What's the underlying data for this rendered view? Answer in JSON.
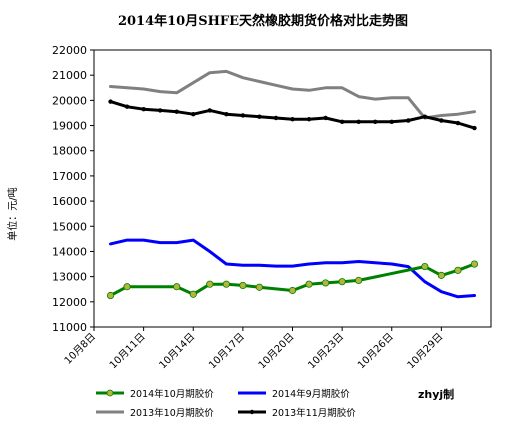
{
  "chart_data": {
    "type": "line",
    "title": "2014年10月SHFE天然橡胶期货价格对比走势图",
    "ylabel": "单位：元/吨",
    "xlabel": "",
    "ylim": [
      11000,
      22000
    ],
    "y_ticks": [
      11000,
      12000,
      13000,
      14000,
      15000,
      16000,
      17000,
      18000,
      19000,
      20000,
      21000,
      22000
    ],
    "x_tick_labels": [
      "10月8日",
      "10月11日",
      "10月14日",
      "10月17日",
      "10月20日",
      "10月23日",
      "10月26日",
      "10月29日"
    ],
    "x_ticks": [
      8,
      11,
      14,
      17,
      20,
      23,
      26,
      29
    ],
    "xlim": [
      8,
      32
    ],
    "grid": false,
    "credit": "zhyj制",
    "series": [
      {
        "name": "2014年10月期胶价",
        "color": "#008000",
        "marker": true,
        "marker_color": "#b5b53c",
        "x": [
          9,
          10,
          13,
          14,
          15,
          16,
          17,
          18,
          20,
          21,
          22,
          23,
          24,
          28,
          29,
          30,
          31
        ],
        "y": [
          12250,
          12600,
          12600,
          12300,
          12700,
          12700,
          12650,
          12580,
          12450,
          12700,
          12750,
          12800,
          12850,
          13400,
          13050,
          13250,
          13500
        ]
      },
      {
        "name": "2014年9月期胶价",
        "color": "#0000ff",
        "marker": false,
        "x": [
          9,
          10,
          11,
          12,
          13,
          14,
          15,
          16,
          17,
          18,
          19,
          20,
          21,
          22,
          23,
          24,
          25,
          26,
          27,
          28,
          29,
          30,
          31
        ],
        "y": [
          14300,
          14450,
          14450,
          14350,
          14350,
          14450,
          14000,
          13500,
          13450,
          13450,
          13420,
          13420,
          13500,
          13550,
          13550,
          13600,
          13550,
          13500,
          13400,
          12800,
          12400,
          12200,
          12250
        ]
      },
      {
        "name": "2013年10月期胶价",
        "color": "#808080",
        "marker": false,
        "x": [
          9,
          10,
          11,
          12,
          13,
          14,
          15,
          16,
          17,
          18,
          19,
          20,
          21,
          22,
          23,
          24,
          25,
          26,
          27,
          28,
          29,
          30,
          31
        ],
        "y": [
          20550,
          20500,
          20450,
          20350,
          20300,
          20700,
          21100,
          21150,
          20900,
          20750,
          20600,
          20450,
          20400,
          20500,
          20500,
          20150,
          20050,
          20100,
          20100,
          19300,
          19400,
          19450,
          19550
        ]
      },
      {
        "name": "2013年11月期胶价",
        "color": "#000000",
        "marker": true,
        "marker_color": "#000000",
        "x": [
          9,
          10,
          11,
          12,
          13,
          14,
          15,
          16,
          17,
          18,
          19,
          20,
          21,
          22,
          23,
          24,
          25,
          26,
          27,
          28,
          29,
          30,
          31
        ],
        "y": [
          19950,
          19750,
          19650,
          19600,
          19550,
          19450,
          19600,
          19450,
          19400,
          19350,
          19300,
          19250,
          19250,
          19300,
          19150,
          19150,
          19150,
          19150,
          19200,
          19350,
          19200,
          19100,
          18900
        ]
      }
    ],
    "legend": {
      "placement": "bottom",
      "order": [
        0,
        1,
        2,
        3
      ]
    }
  }
}
